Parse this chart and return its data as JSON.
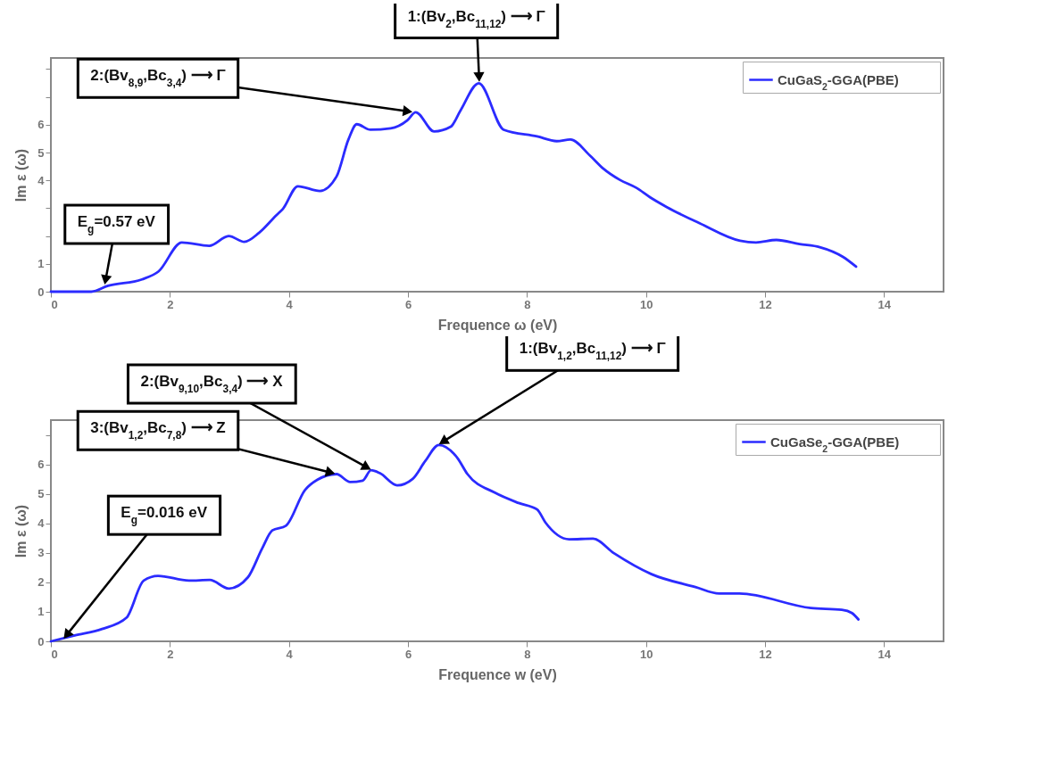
{
  "chart_data": [
    {
      "type": "line",
      "xlabel": "Frequence ω (eV)",
      "ylabel": "Im ε (ω)",
      "xlim": [
        0,
        15
      ],
      "ylim": [
        0,
        8.4
      ],
      "xticks": [
        0,
        2,
        4,
        6,
        8,
        10,
        12,
        14
      ],
      "yticks": [
        0,
        1,
        {
          "value": 2,
          "label": null
        },
        {
          "value": 3,
          "label": null
        },
        4,
        5,
        6,
        {
          "value": 7,
          "label": null
        },
        {
          "value": 8,
          "label": null
        }
      ],
      "legend": "top right",
      "series": [
        {
          "name": "CuGaS$_{2}$-GGA(PBE)",
          "color": "#2b2bff",
          "x": [
            0,
            0.68,
            0.96,
            1.53,
            1.81,
            2.2,
            2.66,
            2.99,
            3.25,
            3.5,
            3.79,
            3.9,
            4.15,
            4.52,
            4.8,
            5.0,
            5.14,
            5.37,
            5.71,
            5.99,
            6.13,
            6.44,
            6.72,
            6.88,
            7.19,
            7.61,
            8.17,
            8.5,
            8.73,
            9.06,
            9.28,
            9.56,
            9.84,
            10.07,
            10.35,
            10.9,
            11.58,
            11.85,
            12.19,
            12.58,
            12.92,
            13.31,
            13.53
          ],
          "values": [
            0,
            0,
            0.21,
            0.44,
            0.73,
            1.77,
            1.65,
            2.0,
            1.79,
            2.12,
            2.75,
            2.98,
            3.79,
            3.62,
            4.14,
            5.47,
            6.02,
            5.82,
            5.87,
            6.16,
            6.45,
            5.76,
            5.93,
            6.5,
            7.49,
            5.82,
            5.58,
            5.41,
            5.47,
            4.89,
            4.43,
            4.02,
            3.73,
            3.39,
            3.04,
            2.46,
            1.83,
            1.77,
            1.86,
            1.71,
            1.6,
            1.25,
            0.9
          ]
        }
      ],
      "annotations": [
        {
          "text": "1:(Bv$_{2}$,Bc$_{11,12}$) ⟶ Γ",
          "x": 7.2,
          "y": 7.49
        },
        {
          "text": "2:(Bv$_{8,9}$,Bc$_{3,4}$) ⟶ Γ",
          "x": 6.1,
          "y": 6.45
        },
        {
          "text": "E$_{g}$=0.57 eV",
          "x": 0.9,
          "y": 0.2
        }
      ]
    },
    {
      "type": "line",
      "xlabel": "Frequence w (eV)",
      "ylabel": "Im ε (ω)",
      "xlim": [
        0,
        15
      ],
      "ylim": [
        0,
        7.5
      ],
      "xticks": [
        0,
        2,
        4,
        6,
        8,
        10,
        12,
        14
      ],
      "yticks": [
        0,
        1,
        2,
        3,
        4,
        5,
        6,
        {
          "value": 7,
          "label": null
        }
      ],
      "legend": "top right",
      "series": [
        {
          "name": "CuGaSe$_{2}$-GGA(PBE)",
          "color": "#2b2bff",
          "x": [
            0,
            0.4,
            0.86,
            1.27,
            1.56,
            1.8,
            2.32,
            2.67,
            2.99,
            3.31,
            3.55,
            3.72,
            3.95,
            4.27,
            4.48,
            4.8,
            5.03,
            5.24,
            5.38,
            5.53,
            5.82,
            6.08,
            6.29,
            6.52,
            6.83,
            7.0,
            7.46,
            7.86,
            8.17,
            8.31,
            8.71,
            9.11,
            9.46,
            10.09,
            10.83,
            11.23,
            11.57,
            12.77,
            13.29,
            13.46,
            13.57
          ],
          "values": [
            0,
            0.2,
            0.42,
            0.8,
            2.06,
            2.22,
            2.06,
            2.08,
            1.79,
            2.17,
            3.15,
            3.76,
            3.92,
            5.13,
            5.48,
            5.67,
            5.4,
            5.45,
            5.8,
            5.7,
            5.29,
            5.51,
            6.11,
            6.66,
            6.22,
            5.67,
            5.04,
            4.69,
            4.47,
            4.03,
            3.46,
            3.48,
            2.99,
            2.28,
            1.84,
            1.62,
            1.62,
            1.13,
            1.07,
            0.96,
            0.74
          ]
        }
      ],
      "annotations": [
        {
          "text": "1:(Bv$_{1,2}$,Bc$_{11,12}$) ⟶ Γ",
          "x": 6.5,
          "y": 6.66
        },
        {
          "text": "2:(Bv$_{9,10}$,Bc$_{3,4}$) ⟶ X",
          "x": 5.4,
          "y": 5.8
        },
        {
          "text": "3:(Bv$_{1,2}$,Bc$_{7,8}$) ⟶ Z",
          "x": 4.8,
          "y": 5.67
        },
        {
          "text": "E$_{g}$=0.016 eV",
          "x": 0.2,
          "y": 0.05
        }
      ]
    }
  ]
}
